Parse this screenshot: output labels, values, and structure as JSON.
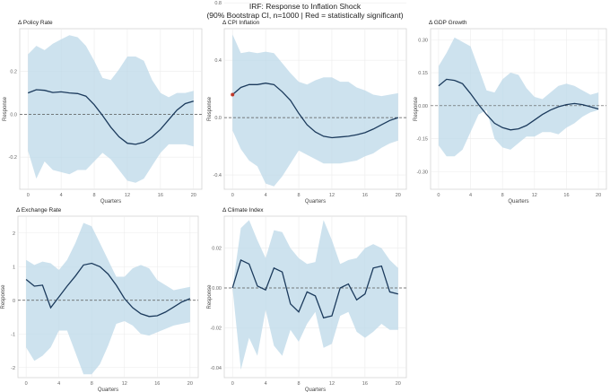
{
  "figure": {
    "title_line1": "IRF: Response to Inflation Shock",
    "title_line2": "(90% Bootstrap CI, n=1000 | Red = statistically significant)"
  },
  "chart_data": [
    {
      "type": "line",
      "title": "Δ Policy Rate",
      "xlabel": "Quarters",
      "ylabel": "Response",
      "xlim": [
        -1,
        21
      ],
      "ylim": [
        -0.35,
        0.4
      ],
      "xticks": [
        0,
        4,
        8,
        12,
        16,
        20
      ],
      "yticks": [
        -0.2,
        0.0,
        0.2
      ],
      "ytick_labels": [
        "-0.2",
        "0.0",
        "0.2"
      ],
      "x": [
        0,
        1,
        2,
        3,
        4,
        5,
        6,
        7,
        8,
        9,
        10,
        11,
        12,
        13,
        14,
        15,
        16,
        17,
        18,
        19,
        20
      ],
      "series": [
        {
          "role": "ci_upper",
          "values": [
            0.28,
            0.32,
            0.3,
            0.33,
            0.35,
            0.37,
            0.36,
            0.32,
            0.25,
            0.17,
            0.16,
            0.21,
            0.27,
            0.27,
            0.25,
            0.16,
            0.1,
            0.08,
            0.1,
            0.1,
            0.11
          ]
        },
        {
          "role": "estimate",
          "values": [
            0.1,
            0.115,
            0.112,
            0.102,
            0.105,
            0.1,
            0.097,
            0.085,
            0.045,
            -0.005,
            -0.06,
            -0.105,
            -0.135,
            -0.14,
            -0.13,
            -0.105,
            -0.07,
            -0.025,
            0.02,
            0.05,
            0.062
          ]
        },
        {
          "role": "ci_lower",
          "values": [
            -0.17,
            -0.3,
            -0.22,
            -0.26,
            -0.27,
            -0.28,
            -0.26,
            -0.26,
            -0.22,
            -0.18,
            -0.21,
            -0.26,
            -0.31,
            -0.32,
            -0.3,
            -0.24,
            -0.18,
            -0.14,
            -0.14,
            -0.14,
            -0.15
          ]
        }
      ],
      "significant_points": [],
      "zero_line": true,
      "grid": true
    },
    {
      "type": "line",
      "title": "Δ CPI Inflation",
      "xlabel": "Quarters",
      "ylabel": "Response",
      "xlim": [
        -1,
        21
      ],
      "ylim": [
        -0.5,
        0.62
      ],
      "xticks": [
        0,
        4,
        8,
        12,
        16,
        20
      ],
      "yticks": [
        -0.4,
        0.0,
        0.4,
        0.8
      ],
      "ytick_labels": [
        "-0.4",
        "0.0",
        "0.4",
        "0.8"
      ],
      "x": [
        0,
        1,
        2,
        3,
        4,
        5,
        6,
        7,
        8,
        9,
        10,
        11,
        12,
        13,
        14,
        15,
        16,
        17,
        18,
        19,
        20
      ],
      "series": [
        {
          "role": "ci_upper",
          "values": [
            0.58,
            0.45,
            0.46,
            0.45,
            0.46,
            0.45,
            0.38,
            0.31,
            0.25,
            0.23,
            0.26,
            0.28,
            0.28,
            0.25,
            0.25,
            0.21,
            0.19,
            0.16,
            0.15,
            0.16,
            0.17
          ]
        },
        {
          "role": "estimate",
          "values": [
            0.16,
            0.21,
            0.23,
            0.23,
            0.24,
            0.23,
            0.18,
            0.12,
            0.03,
            -0.05,
            -0.1,
            -0.13,
            -0.14,
            -0.135,
            -0.13,
            -0.12,
            -0.105,
            -0.08,
            -0.05,
            -0.02,
            0.0
          ]
        },
        {
          "role": "ci_lower",
          "values": [
            -0.09,
            -0.22,
            -0.3,
            -0.34,
            -0.46,
            -0.48,
            -0.41,
            -0.32,
            -0.23,
            -0.26,
            -0.29,
            -0.32,
            -0.32,
            -0.32,
            -0.31,
            -0.3,
            -0.27,
            -0.25,
            -0.21,
            -0.18,
            -0.16
          ]
        }
      ],
      "significant_points": [
        {
          "x": 0,
          "y": 0.16
        }
      ],
      "zero_line": true,
      "grid": true
    },
    {
      "type": "line",
      "title": "Δ GDP Growth",
      "xlabel": "Quarters",
      "ylabel": "Response",
      "xlim": [
        -1,
        21
      ],
      "ylim": [
        -0.38,
        0.35
      ],
      "xticks": [
        0,
        4,
        8,
        12,
        16,
        20
      ],
      "yticks": [
        -0.3,
        -0.15,
        0.0,
        0.15,
        0.3
      ],
      "ytick_labels": [
        "-0.30",
        "-0.15",
        "0.00",
        "0.15",
        "0.30"
      ],
      "x": [
        0,
        1,
        2,
        3,
        4,
        5,
        6,
        7,
        8,
        9,
        10,
        11,
        12,
        13,
        14,
        15,
        16,
        17,
        18,
        19,
        20
      ],
      "series": [
        {
          "role": "ci_upper",
          "values": [
            0.18,
            0.24,
            0.31,
            0.29,
            0.27,
            0.17,
            0.07,
            0.06,
            0.12,
            0.15,
            0.14,
            0.08,
            0.04,
            0.03,
            0.06,
            0.09,
            0.1,
            0.09,
            0.07,
            0.05,
            0.06
          ]
        },
        {
          "role": "estimate",
          "values": [
            0.09,
            0.12,
            0.115,
            0.1,
            0.055,
            0.005,
            -0.04,
            -0.08,
            -0.1,
            -0.11,
            -0.105,
            -0.09,
            -0.065,
            -0.04,
            -0.02,
            -0.005,
            0.005,
            0.01,
            0.005,
            -0.005,
            -0.015
          ]
        },
        {
          "role": "ci_lower",
          "values": [
            -0.18,
            -0.23,
            -0.23,
            -0.2,
            -0.12,
            -0.04,
            -0.02,
            -0.15,
            -0.19,
            -0.2,
            -0.17,
            -0.14,
            -0.14,
            -0.12,
            -0.12,
            -0.13,
            -0.1,
            -0.08,
            -0.05,
            -0.03,
            -0.02
          ]
        }
      ],
      "significant_points": [],
      "zero_line": true,
      "grid": true
    },
    {
      "type": "line",
      "title": "Δ Exchange Rate",
      "xlabel": "Quarters",
      "ylabel": "Response",
      "xlim": [
        -1,
        21
      ],
      "ylim": [
        -2.3,
        2.5
      ],
      "xticks": [
        0,
        4,
        8,
        12,
        16,
        20
      ],
      "yticks": [
        -2,
        -1,
        0,
        1,
        2
      ],
      "ytick_labels": [
        "-2",
        "-1",
        "0",
        "1",
        "2"
      ],
      "x": [
        0,
        1,
        2,
        3,
        4,
        5,
        6,
        7,
        8,
        9,
        10,
        11,
        12,
        13,
        14,
        15,
        16,
        17,
        18,
        19,
        20
      ],
      "series": [
        {
          "role": "ci_upper",
          "values": [
            1.2,
            1.05,
            1.15,
            1.1,
            0.9,
            1.2,
            1.7,
            2.3,
            2.2,
            1.7,
            1.2,
            0.7,
            0.7,
            0.95,
            1.05,
            0.95,
            0.6,
            0.45,
            0.3,
            0.35,
            0.4
          ]
        },
        {
          "role": "estimate",
          "values": [
            0.62,
            0.42,
            0.45,
            -0.22,
            0.1,
            0.42,
            0.72,
            1.05,
            1.1,
            1.0,
            0.78,
            0.45,
            0.05,
            -0.22,
            -0.4,
            -0.48,
            -0.46,
            -0.35,
            -0.2,
            -0.05,
            0.05
          ]
        },
        {
          "role": "ci_lower",
          "values": [
            -1.4,
            -1.8,
            -1.65,
            -1.4,
            -0.9,
            -0.9,
            -1.55,
            -2.2,
            -2.2,
            -1.9,
            -1.35,
            -0.7,
            -0.62,
            -0.75,
            -1.0,
            -1.05,
            -0.95,
            -0.85,
            -0.75,
            -0.7,
            -0.65
          ]
        }
      ],
      "significant_points": [],
      "zero_line": true,
      "grid": true
    },
    {
      "type": "line",
      "title": "Δ Climate Index",
      "xlabel": "Quarters",
      "ylabel": "Response",
      "xlim": [
        -1,
        21
      ],
      "ylim": [
        -0.045,
        0.036
      ],
      "xticks": [
        0,
        4,
        8,
        12,
        16,
        20
      ],
      "yticks": [
        -0.04,
        -0.02,
        0.0,
        0.02
      ],
      "ytick_labels": [
        "-0.04",
        "-0.02",
        "0.00",
        "0.02"
      ],
      "x": [
        0,
        1,
        2,
        3,
        4,
        5,
        6,
        7,
        8,
        9,
        10,
        11,
        12,
        13,
        14,
        15,
        16,
        17,
        18,
        19,
        20
      ],
      "series": [
        {
          "role": "ci_upper",
          "values": [
            0.0,
            0.03,
            0.034,
            0.024,
            0.015,
            0.029,
            0.028,
            0.02,
            0.015,
            0.012,
            0.013,
            0.034,
            0.024,
            0.012,
            0.014,
            0.015,
            0.02,
            0.022,
            0.02,
            0.014,
            0.01
          ]
        },
        {
          "role": "estimate",
          "values": [
            0.0,
            0.014,
            0.012,
            0.001,
            -0.001,
            0.01,
            0.008,
            -0.008,
            -0.012,
            -0.002,
            -0.004,
            -0.015,
            -0.014,
            0.0,
            0.002,
            -0.006,
            -0.003,
            0.01,
            0.011,
            -0.002,
            -0.003
          ]
        },
        {
          "role": "ci_lower",
          "values": [
            0.0,
            -0.041,
            -0.025,
            -0.034,
            -0.011,
            -0.029,
            -0.034,
            -0.021,
            -0.027,
            -0.018,
            -0.012,
            -0.03,
            -0.028,
            -0.014,
            -0.012,
            -0.022,
            -0.025,
            -0.022,
            -0.018,
            -0.021,
            -0.021
          ]
        }
      ],
      "significant_points": [],
      "zero_line": true,
      "grid": true
    }
  ]
}
